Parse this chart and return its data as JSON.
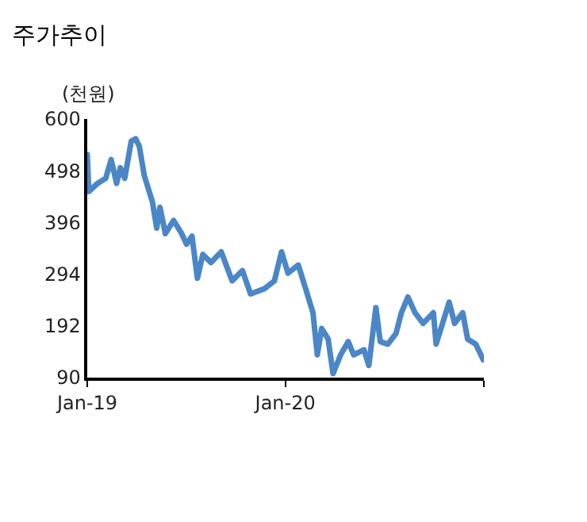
{
  "chart_data": {
    "type": "line",
    "title": "주가추이",
    "ylabel": "(천원)",
    "x": [
      "2019-01-01",
      "2019-01-04",
      "2019-01-20",
      "2019-02-04",
      "2019-02-14",
      "2019-02-24",
      "2019-03-03",
      "2019-03-11",
      "2019-03-23",
      "2019-03-31",
      "2019-04-07",
      "2019-04-16",
      "2019-05-01",
      "2019-05-09",
      "2019-05-15",
      "2019-05-25",
      "2019-06-09",
      "2019-06-24",
      "2019-07-03",
      "2019-07-13",
      "2019-07-23",
      "2019-08-02",
      "2019-08-17",
      "2019-09-05",
      "2019-09-25",
      "2019-10-14",
      "2019-10-29",
      "2019-11-23",
      "2019-12-12",
      "2019-12-25",
      "2020-01-06",
      "2020-01-25",
      "2020-02-09",
      "2020-02-21",
      "2020-02-29",
      "2020-03-08",
      "2020-03-20",
      "2020-03-29",
      "2020-04-12",
      "2020-04-26",
      "2020-05-06",
      "2020-05-25",
      "2020-06-03",
      "2020-06-16",
      "2020-06-24",
      "2020-07-08",
      "2020-07-23",
      "2020-08-02",
      "2020-08-14",
      "2020-08-27",
      "2020-09-11",
      "2020-09-30",
      "2020-10-05",
      "2020-10-14",
      "2020-10-29",
      "2020-11-08",
      "2020-11-23",
      "2020-12-02",
      "2020-12-17",
      "2020-12-31"
    ],
    "series": [
      {
        "color": "#4a86c8",
        "values": [
          530,
          457,
          473,
          483,
          520,
          473,
          504,
          483,
          556,
          561,
          546,
          489,
          437,
          385,
          426,
          374,
          400,
          374,
          353,
          369,
          286,
          333,
          317,
          338,
          281,
          301,
          255,
          265,
          281,
          338,
          296,
          312,
          260,
          218,
          135,
          187,
          166,
          98,
          135,
          161,
          135,
          145,
          114,
          228,
          161,
          156,
          177,
          218,
          249,
          218,
          197,
          218,
          156,
          187,
          239,
          197,
          218,
          166,
          156,
          125
        ]
      }
    ],
    "xlim": [
      "2019-01-01",
      "2021-01-01"
    ],
    "xticks": [
      {
        "value": "2019-01-01",
        "label": "Jan-19"
      },
      {
        "value": "2020-01-01",
        "label": "Jan-20"
      },
      {
        "value": "2021-01-01",
        "label": null
      }
    ],
    "ylim": [
      90,
      600
    ],
    "yticks": [
      90,
      192,
      294,
      396,
      498,
      600
    ],
    "marker": "none",
    "line_style": "solid"
  }
}
